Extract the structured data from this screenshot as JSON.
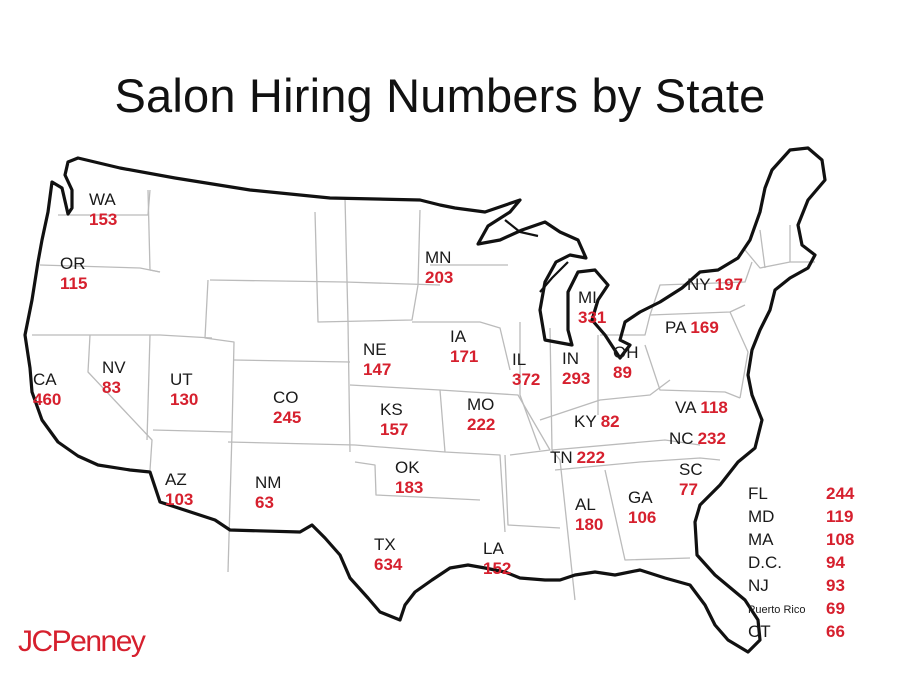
{
  "title": "Salon Hiring Numbers by State",
  "brand": "JCPenney",
  "colors": {
    "accent": "#d6202e",
    "text": "#1a1a1a",
    "outline": "#111111",
    "borders": "#bbbbbb"
  },
  "states": [
    {
      "abbr": "WA",
      "value": "153"
    },
    {
      "abbr": "OR",
      "value": "115"
    },
    {
      "abbr": "CA",
      "value": "460"
    },
    {
      "abbr": "NV",
      "value": "83"
    },
    {
      "abbr": "UT",
      "value": "130"
    },
    {
      "abbr": "AZ",
      "value": "103"
    },
    {
      "abbr": "CO",
      "value": "245"
    },
    {
      "abbr": "NM",
      "value": "63"
    },
    {
      "abbr": "NE",
      "value": "147"
    },
    {
      "abbr": "KS",
      "value": "157"
    },
    {
      "abbr": "OK",
      "value": "183"
    },
    {
      "abbr": "TX",
      "value": "634"
    },
    {
      "abbr": "MN",
      "value": "203"
    },
    {
      "abbr": "IA",
      "value": "171"
    },
    {
      "abbr": "MO",
      "value": "222"
    },
    {
      "abbr": "LA",
      "value": "152"
    },
    {
      "abbr": "IL",
      "value": "372"
    },
    {
      "abbr": "MI",
      "value": "331"
    },
    {
      "abbr": "IN",
      "value": "293"
    },
    {
      "abbr": "OH",
      "value": "89"
    },
    {
      "abbr": "AL",
      "value": "180"
    },
    {
      "abbr": "GA",
      "value": "106"
    },
    {
      "abbr": "SC",
      "value": "77"
    },
    {
      "abbr": "KY",
      "value": "82"
    },
    {
      "abbr": "TN",
      "value": "222"
    },
    {
      "abbr": "VA",
      "value": "118"
    },
    {
      "abbr": "NC",
      "value": "232"
    },
    {
      "abbr": "PA",
      "value": "169"
    },
    {
      "abbr": "NY",
      "value": "197"
    }
  ],
  "legend": [
    {
      "abbr": "FL",
      "value": "244"
    },
    {
      "abbr": "MD",
      "value": "119"
    },
    {
      "abbr": "MA",
      "value": "108"
    },
    {
      "abbr": "D.C.",
      "value": "94"
    },
    {
      "abbr": "NJ",
      "value": "93"
    },
    {
      "abbr": "Puerto Rico",
      "value": "69"
    },
    {
      "abbr": "CT",
      "value": "66"
    }
  ]
}
